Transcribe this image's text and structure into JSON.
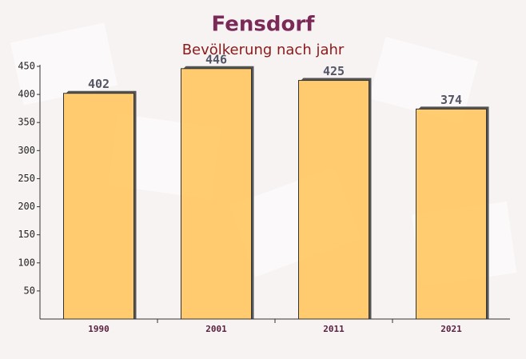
{
  "chart_data": {
    "type": "bar",
    "title": "Fensdorf",
    "subtitle": "Bevölkerung nach jahr",
    "categories": [
      "1990",
      "2001",
      "2011",
      "2021"
    ],
    "values": [
      402,
      446,
      425,
      374
    ],
    "color": "#ffc75f",
    "ylim": [
      0,
      450
    ],
    "yticks": [
      50,
      100,
      150,
      200,
      250,
      300,
      350,
      400,
      450
    ]
  }
}
